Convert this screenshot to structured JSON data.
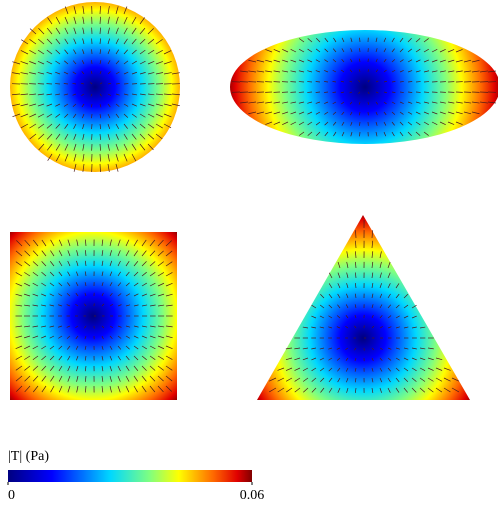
{
  "colorbar": {
    "label": "|T| (Pa)",
    "min": 0,
    "max": 0.06,
    "ticks": [
      0,
      0.06
    ]
  }
}
